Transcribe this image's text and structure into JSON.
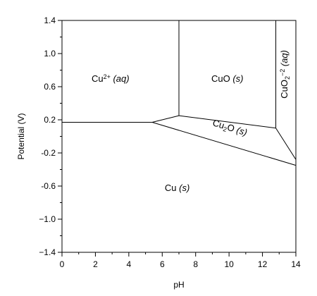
{
  "chart_data": {
    "type": "phase-diagram",
    "title": "",
    "xlabel": "pH",
    "ylabel": "Potential (V)",
    "xlim": [
      0,
      14
    ],
    "ylim": [
      -1.4,
      1.4
    ],
    "x_ticks": [
      0,
      2,
      4,
      6,
      8,
      10,
      12,
      14
    ],
    "x_tick_labels": [
      "0",
      "2",
      "4",
      "6",
      "8",
      "10",
      "12",
      "14"
    ],
    "y_ticks": [
      1.4,
      1.0,
      0.6,
      0.2,
      -0.2,
      -0.6,
      -1.0,
      -1.4
    ],
    "y_tick_labels": [
      "1.4",
      "1.0",
      "0.6",
      "0.2",
      "-0.2",
      "-0.6",
      "−1.0",
      "−1.4"
    ],
    "boundaries": [
      {
        "name": "cu2plus-cu",
        "points": [
          [
            0,
            0.17
          ],
          [
            5.4,
            0.17
          ]
        ]
      },
      {
        "name": "cu2plus-cu2o",
        "points": [
          [
            5.4,
            0.17
          ],
          [
            7.0,
            0.25
          ]
        ]
      },
      {
        "name": "cu2plus-cuo",
        "points": [
          [
            7.0,
            0.25
          ],
          [
            7.0,
            1.4
          ]
        ]
      },
      {
        "name": "cuo-cu2o",
        "points": [
          [
            7.0,
            0.25
          ],
          [
            12.8,
            0.1
          ]
        ]
      },
      {
        "name": "cuo-cuo2",
        "points": [
          [
            12.8,
            0.1
          ],
          [
            12.8,
            1.4
          ]
        ]
      },
      {
        "name": "cu2o-cuo2",
        "points": [
          [
            12.8,
            0.1
          ],
          [
            14,
            -0.28
          ]
        ]
      },
      {
        "name": "cu2o-cu",
        "points": [
          [
            5.4,
            0.17
          ],
          [
            14,
            -0.35
          ]
        ]
      }
    ],
    "regions": [
      {
        "name": "cu2plus",
        "label_main": "Cu",
        "label_sup": "2+",
        "label_state": "(aq)",
        "x": 2.9,
        "y": 0.66
      },
      {
        "name": "cuo",
        "label_main": "CuO",
        "label_state": "(s)",
        "x": 9.9,
        "y": 0.66
      },
      {
        "name": "cu2o",
        "label_main": "Cu",
        "label_sub": "2",
        "label_tail": "O",
        "label_state": "(s)",
        "x": 10.0,
        "y": 0.07,
        "angle": 17
      },
      {
        "name": "cuo2",
        "label_main": "CuO",
        "label_sub": "2",
        "label_sup": "−2",
        "label_state": "(aq)",
        "x": 13.5,
        "y": 0.75,
        "angle": -90
      },
      {
        "name": "cu",
        "label_main": "Cu",
        "label_state": "(s)",
        "x": 6.9,
        "y": -0.66
      }
    ]
  }
}
